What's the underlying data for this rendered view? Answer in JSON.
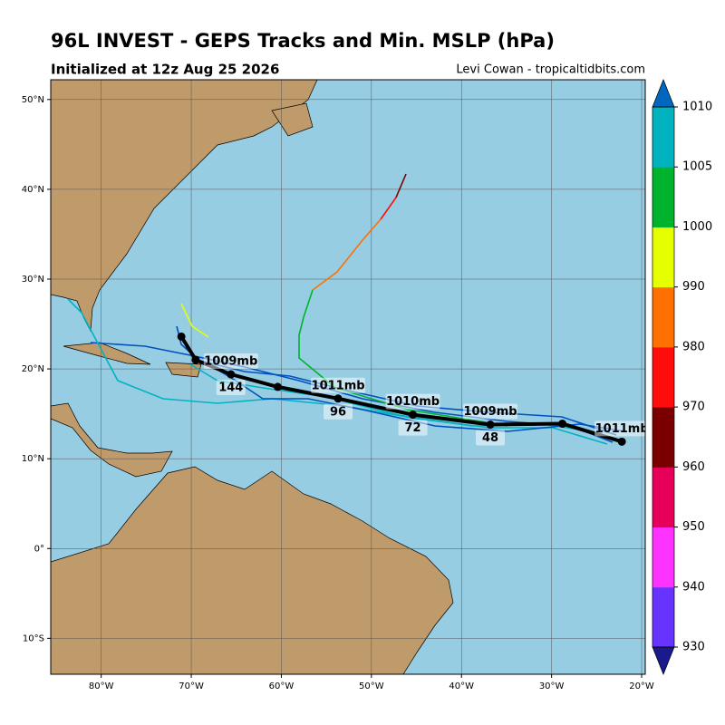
{
  "header": {
    "title": "96L INVEST - GEPS Tracks and Min. MSLP (hPa)",
    "subtitle": "Initialized at 12z Aug 25 2026",
    "credit": "Levi Cowan - tropicaltidbits.com"
  },
  "map": {
    "xlim": [
      -85.6,
      -19.6
    ],
    "ylim": [
      -14.0,
      52.2
    ],
    "xticks": [
      {
        "value": -80,
        "label": "80°W"
      },
      {
        "value": -70,
        "label": "70°W"
      },
      {
        "value": -60,
        "label": "60°W"
      },
      {
        "value": -50,
        "label": "50°W"
      },
      {
        "value": -40,
        "label": "40°W"
      },
      {
        "value": -30,
        "label": "30°W"
      },
      {
        "value": -20,
        "label": "20°W"
      }
    ],
    "yticks": [
      {
        "value": 50,
        "label": "50°N"
      },
      {
        "value": 40,
        "label": "40°N"
      },
      {
        "value": 30,
        "label": "30°N"
      },
      {
        "value": 20,
        "label": "20°N"
      },
      {
        "value": 10,
        "label": "10°N"
      },
      {
        "value": 0,
        "label": "0°"
      },
      {
        "value": -10,
        "label": "10°S"
      }
    ],
    "grid": true,
    "mean_track": {
      "color": "#000000",
      "lon": [
        -22.2,
        -28.8,
        -36.8,
        -45.4,
        -53.7,
        -60.4,
        -65.6,
        -69.5,
        -71.1
      ],
      "lat": [
        11.9,
        13.9,
        13.8,
        14.9,
        16.7,
        18.0,
        19.4,
        21.0,
        23.6
      ],
      "pressure_labels": [
        "1011mb",
        null,
        "1009mb",
        "1010mb",
        "1011mb",
        null,
        "1009mb",
        null,
        null
      ],
      "hour_labels": [
        null,
        null,
        "48",
        "72",
        "96",
        null,
        "144",
        null,
        null
      ]
    }
  },
  "colorbar": {
    "ticks": [
      930,
      940,
      950,
      960,
      970,
      980,
      990,
      1000,
      1005,
      1010
    ],
    "colors": [
      "#6633ff",
      "#ff33ff",
      "#e6005a",
      "#7a0000",
      "#ff0d0d",
      "#ff7000",
      "#e6ff00",
      "#00b32c",
      "#00b3bf"
    ],
    "under_color": "#1a1a8c",
    "over_color": "#0066bf"
  }
}
